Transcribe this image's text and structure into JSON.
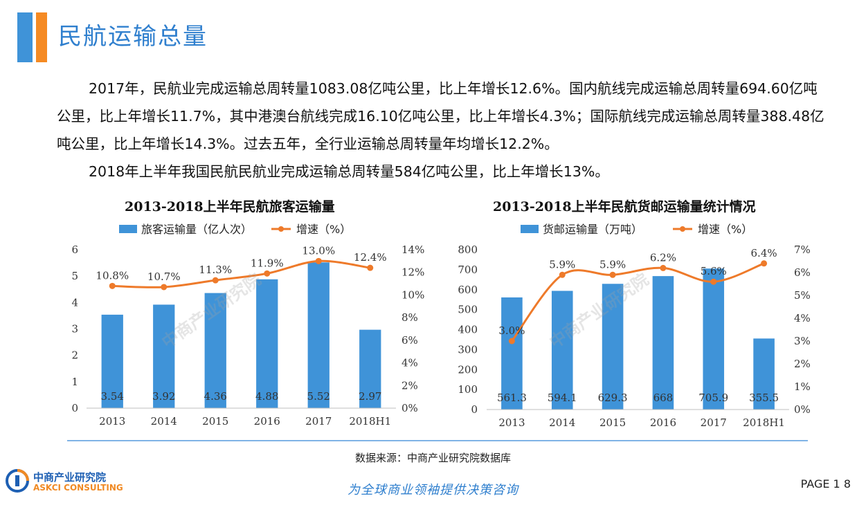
{
  "header": {
    "title": "民航运输总量"
  },
  "body": {
    "paragraph1": "2017年，民航业完成运输总周转量1083.08亿吨公里，比上年增长12.6%。国内航线完成运输总周转量694.60亿吨公里，比上年增长11.7%，其中港澳台航线完成16.10亿吨公里，比上年增长4.3%；国际航线完成运输总周转量388.48亿吨公里，比上年增长14.3%。过去五年，全行业运输总周转量年均增长12.2%。",
    "paragraph2": "2018年上半年我国民航民航业完成运输总周转量584亿吨公里，比上年增长13%。"
  },
  "watermark": {
    "text": "中商产业研究院",
    "url": "www.askci.com/reports/"
  },
  "chart_data": [
    {
      "type": "bar",
      "title": "2013-2018上半年民航旅客运输量",
      "categories": [
        "2013",
        "2014",
        "2015",
        "2016",
        "2017",
        "2018H1"
      ],
      "series": [
        {
          "name": "旅客运输量（亿人次）",
          "type": "bar",
          "axis": "left",
          "color": "#3f93d8",
          "values": [
            3.54,
            3.92,
            4.36,
            4.88,
            5.52,
            2.97
          ],
          "labels": [
            "3.54",
            "3.92",
            "4.36",
            "4.88",
            "5.52",
            "2.97"
          ]
        },
        {
          "name": "增速（%）",
          "type": "line",
          "axis": "right",
          "color": "#ee7a2a",
          "values": [
            10.8,
            10.7,
            11.3,
            11.9,
            13.0,
            12.4
          ],
          "labels": [
            "10.8%",
            "10.7%",
            "11.3%",
            "11.9%",
            "13.0%",
            "12.4%"
          ]
        }
      ],
      "y_left": {
        "min": 0,
        "max": 6,
        "ticks": [
          0,
          1,
          2,
          3,
          4,
          5,
          6
        ],
        "tick_labels": [
          "0",
          "1",
          "2",
          "3",
          "4",
          "5",
          "6"
        ]
      },
      "y_right": {
        "min": 0,
        "max": 14,
        "ticks": [
          0,
          2,
          4,
          6,
          8,
          10,
          12,
          14
        ],
        "tick_labels": [
          "0%",
          "2%",
          "4%",
          "6%",
          "8%",
          "10%",
          "12%",
          "14%"
        ]
      },
      "legend": "top-center",
      "grid": false
    },
    {
      "type": "bar",
      "title": "2013-2018上半年民航货邮运输量统计情况",
      "categories": [
        "2013",
        "2014",
        "2015",
        "2016",
        "2017",
        "2018H1"
      ],
      "series": [
        {
          "name": "货邮运输量（万吨）",
          "type": "bar",
          "axis": "left",
          "color": "#3f93d8",
          "values": [
            561.3,
            594.1,
            629.3,
            668,
            705.9,
            355.5
          ],
          "labels": [
            "561.3",
            "594.1",
            "629.3",
            "668",
            "705.9",
            "355.5"
          ]
        },
        {
          "name": "增速（%）",
          "type": "line",
          "axis": "right",
          "color": "#ee7a2a",
          "values": [
            3.0,
            5.9,
            5.9,
            6.2,
            5.6,
            6.4
          ],
          "labels": [
            "3.0%",
            "5.9%",
            "5.9%",
            "6.2%",
            "5.6%",
            "6.4%"
          ]
        }
      ],
      "y_left": {
        "min": 0,
        "max": 800,
        "ticks": [
          0,
          100,
          200,
          300,
          400,
          500,
          600,
          700,
          800
        ],
        "tick_labels": [
          "0",
          "100",
          "200",
          "300",
          "400",
          "500",
          "600",
          "700",
          "800"
        ]
      },
      "y_right": {
        "min": 0,
        "max": 7,
        "ticks": [
          0,
          1,
          2,
          3,
          4,
          5,
          6,
          7
        ],
        "tick_labels": [
          "0%",
          "1%",
          "2%",
          "3%",
          "4%",
          "5%",
          "6%",
          "7%"
        ]
      },
      "legend": "top-center",
      "grid": false
    }
  ],
  "footer": {
    "source": "数据来源：中商产业研究院数据库",
    "logo_cn": "中商产业研究院",
    "logo_en": "ASKCI CONSULTING",
    "slogan": "为全球商业领袖提供决策咨询",
    "page_label": "PAGE 1 8"
  },
  "colors": {
    "accent_blue": "#3f93d8",
    "accent_orange": "#f58a23",
    "title_blue": "#2f7fce",
    "line_orange": "#ee7a2a"
  }
}
